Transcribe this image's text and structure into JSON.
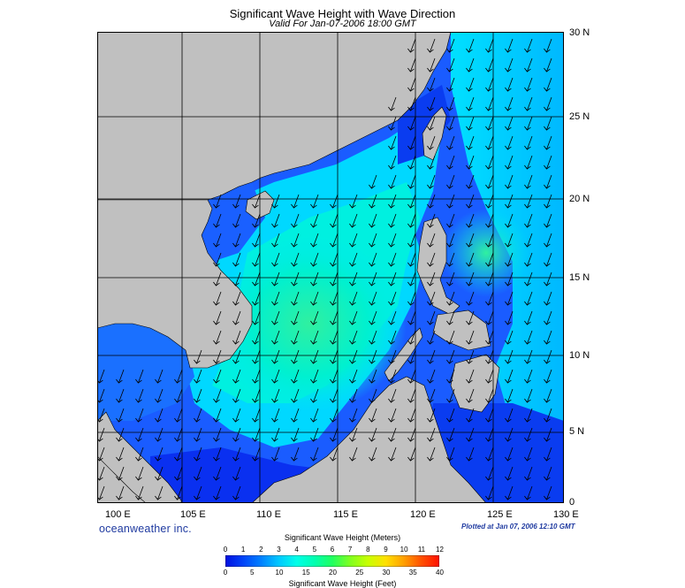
{
  "title": "Significant Wave Height with Wave Direction",
  "subtitle": "Valid For Jan-07-2006 18:00 GMT",
  "lat_labels": [
    "30 N",
    "25 N",
    "20 N",
    "15 N",
    "10 N",
    "5 N",
    "0"
  ],
  "lon_labels": [
    "100 E",
    "105 E",
    "110 E",
    "115 E",
    "120 E",
    "125 E",
    "130 E"
  ],
  "brand": "oceanweather inc.",
  "plotted_at": "Plotted at Jan 07, 2006 12:10 GMT",
  "colorbar": {
    "title_meters": "Significant Wave Height (Meters)",
    "title_feet": "Significant Wave Height (Feet)",
    "meters_ticks": [
      "0",
      "1",
      "2",
      "3",
      "4",
      "5",
      "6",
      "7",
      "8",
      "9",
      "10",
      "11",
      "12"
    ],
    "feet_ticks": [
      "0",
      "5",
      "10",
      "15",
      "20",
      "25",
      "30",
      "35",
      "40"
    ],
    "colors": [
      "#0010e0",
      "#0044f8",
      "#0080ff",
      "#00c8ff",
      "#00ffe8",
      "#00ffb0",
      "#20ff60",
      "#80ff20",
      "#c8ff00",
      "#ffe000",
      "#ffa000",
      "#ff5000",
      "#ff1000"
    ]
  },
  "map": {
    "land_color": "#c0c0c0",
    "sea_colors": {
      "deep_blue": "#0a2cf0",
      "blue": "#1a6cff",
      "light_blue": "#00a8ff",
      "cyan": "#00e0ff",
      "aqua": "#00f8d8",
      "green": "#30f0a0"
    },
    "wave_direction": "from northeast toward southwest"
  }
}
